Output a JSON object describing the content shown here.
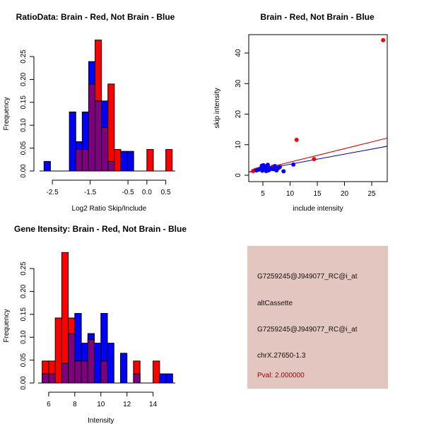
{
  "chart_data": [
    {
      "type": "histogram",
      "title": "RatioData: Brain - Red, Not Brain - Blue",
      "xlabel": "Log2 Ratio Skip/Include",
      "ylabel": "Frequency",
      "xlim": [
        -2.8,
        0.75
      ],
      "ylim": [
        0,
        0.25
      ],
      "xticks": [
        -2.5,
        -1.5,
        -0.5,
        0.0,
        0.5
      ],
      "xtick_labels": [
        "-2.5",
        "-1.5",
        "-0.5",
        "0.0",
        "0.5"
      ],
      "yticks": [
        0,
        0.05,
        0.1,
        0.15,
        0.2,
        0.25
      ],
      "ytick_labels": [
        "0.00",
        "0.05",
        "0.10",
        "0.15",
        "0.20",
        "0.25"
      ],
      "bin_starts": [
        -2.72,
        -2.05,
        -1.88,
        -1.71,
        -1.54,
        -1.37,
        -1.2,
        -1.03,
        -0.86,
        -0.69,
        -0.52,
        0.0,
        0.5
      ],
      "bin_width": 0.17,
      "series": [
        {
          "name": "Not Brain",
          "color": "#0000ff",
          "values": [
            0.021,
            0.129,
            0.064,
            0.129,
            0.239,
            0.153,
            0.153,
            0.021,
            0,
            0.043,
            0.043,
            0,
            0
          ]
        },
        {
          "name": "Brain",
          "color": "#ff0000",
          "values": [
            0,
            0,
            0.047,
            0.047,
            0.19,
            0.286,
            0.095,
            0.19,
            0.047,
            0,
            0,
            0.047,
            0.047
          ]
        }
      ],
      "overlap_color": "#7f007f"
    },
    {
      "type": "scatter",
      "title": "Brain - Red, Not Brain - Blue",
      "xlabel": "include intensity",
      "ylabel": "skip intensity",
      "xlim": [
        2.4,
        28
      ],
      "ylim": [
        -0.3,
        47
      ],
      "xticks": [
        5,
        10,
        15,
        20,
        25
      ],
      "yticks": [
        0,
        10,
        20,
        30,
        40
      ],
      "series": [
        {
          "name": "Brain",
          "color": "#ff0000",
          "points": [
            [
              3.2,
              1.4
            ],
            [
              3.6,
              1.7
            ],
            [
              4.0,
              1.9
            ],
            [
              4.4,
              2.1
            ],
            [
              5.0,
              2.4
            ],
            [
              6.8,
              2.8
            ],
            [
              7.5,
              2.6
            ],
            [
              11.2,
              11.6
            ],
            [
              14.4,
              5.3
            ],
            [
              27.1,
              44.2
            ]
          ],
          "fit": {
            "intercept": -0.1,
            "slope": 0.44
          }
        },
        {
          "name": "Not Brain",
          "color": "#0000ff",
          "points": [
            [
              3.8,
              1.6
            ],
            [
              4.2,
              1.8
            ],
            [
              4.5,
              2.0
            ],
            [
              4.8,
              3.1
            ],
            [
              5.1,
              3.3
            ],
            [
              5.3,
              2.2
            ],
            [
              5.5,
              1.7
            ],
            [
              5.7,
              2.9
            ],
            [
              5.9,
              3.4
            ],
            [
              6.1,
              2.5
            ],
            [
              6.3,
              1.9
            ],
            [
              6.6,
              2.2
            ],
            [
              6.9,
              2.0
            ],
            [
              7.2,
              3.0
            ],
            [
              7.5,
              1.6
            ],
            [
              7.8,
              2.3
            ],
            [
              8.1,
              2.7
            ],
            [
              8.8,
              1.3
            ],
            [
              10.6,
              3.5
            ],
            [
              4.9,
              1.5
            ],
            [
              5.6,
              1.4
            ],
            [
              6.0,
              1.6
            ]
          ],
          "fit": {
            "intercept": 0.3,
            "slope": 0.33
          }
        }
      ]
    },
    {
      "type": "histogram",
      "title": "Gene Itensity: Brain - Red, Not Brain - Blue",
      "xlabel": "Intensity",
      "ylabel": "Frequency",
      "xlim": [
        5.3,
        15.7
      ],
      "ylim": [
        0,
        0.25
      ],
      "xticks": [
        6,
        8,
        10,
        12,
        14
      ],
      "xtick_labels": [
        "6",
        "8",
        "10",
        "12",
        "14"
      ],
      "yticks": [
        0,
        0.05,
        0.1,
        0.15,
        0.2,
        0.25
      ],
      "ytick_labels": [
        "0.00",
        "0.05",
        "0.10",
        "0.15",
        "0.20",
        "0.25"
      ],
      "bin_starts": [
        5.5,
        6.0,
        6.5,
        7.0,
        7.5,
        8.0,
        8.5,
        9.0,
        9.5,
        10.0,
        10.5,
        11.0,
        11.5,
        12.0,
        12.5,
        13.0,
        13.5,
        14.0,
        14.5,
        15.0
      ],
      "bin_width": 0.5,
      "series": [
        {
          "name": "Not Brain",
          "color": "#0000ff",
          "values": [
            0.02,
            0.02,
            0,
            0.043,
            0.108,
            0.152,
            0.087,
            0.108,
            0.087,
            0.152,
            0.087,
            0,
            0.065,
            0,
            0.02,
            0,
            0,
            0,
            0.02,
            0.02
          ]
        },
        {
          "name": "Brain",
          "color": "#ff0000",
          "values": [
            0.048,
            0.048,
            0.142,
            0.285,
            0.142,
            0.048,
            0.048,
            0.095,
            0,
            0.048,
            0,
            0,
            0,
            0,
            0.048,
            0,
            0,
            0.048,
            0,
            0
          ]
        }
      ],
      "overlap_color": "#7f007f"
    }
  ],
  "info_panel": {
    "probe_id": "G7259245@J949077_RC@i_at",
    "event_type": "altCassette",
    "probe_id_2": "G7259245@J949077_RC@i_at",
    "location": "chrX.27650-1.3",
    "pval": "Pval: 2.000000"
  }
}
